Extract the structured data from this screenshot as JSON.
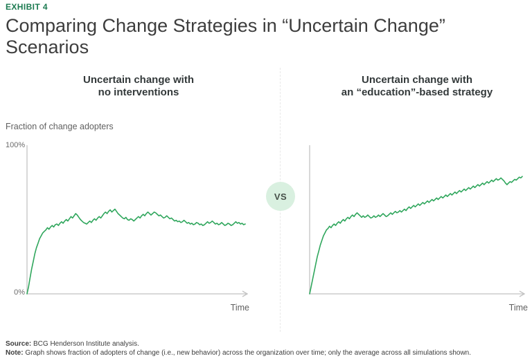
{
  "exhibit_label": "EXHIBIT 4",
  "title_lines": [
    "Comparing Change Strategies in “Uncertain Change”",
    "Scenarios"
  ],
  "vs_badge": {
    "label": "VS"
  },
  "axes": {
    "y_title": "Fraction of change adopters",
    "y_tick_top": "100%",
    "y_tick_bottom": "0%",
    "x_title_left": "Time",
    "x_title_right": "Time"
  },
  "footer": {
    "source_label": "Source:",
    "source_text": " BCG Henderson Institute analysis.",
    "note_label": "Note:",
    "note_text": " Graph shows fraction of adopters of change (i.e., new behavior) across the organization over time; only the average across all simulations shown."
  },
  "colors": {
    "line": "#2fa65c",
    "exhibit_green": "#1b7a50",
    "vs_background": "#d9f0e0",
    "axis_gray": "#c2c2c2",
    "divider_gray": "#e8e8e8"
  },
  "chart_data": [
    {
      "type": "line",
      "title": "Uncertain change with no interventions",
      "title_lines": [
        "Uncertain change with",
        "no interventions"
      ],
      "xlabel": "Time",
      "ylabel": "Fraction of change adopters",
      "ylim": [
        0,
        100
      ],
      "y_ticks": [
        "0%",
        "100%"
      ],
      "x_axis": "unlabeled time axis with arrow",
      "grid": false,
      "legend": false,
      "series": [
        {
          "name": "average fraction of change adopters across all simulations",
          "values": [
            0,
            5,
            11,
            17,
            22,
            27,
            31,
            34,
            37,
            39,
            41,
            42,
            43,
            44.5,
            43.5,
            45,
            46,
            45,
            46.5,
            47,
            46,
            47.5,
            48.5,
            47.5,
            49,
            50,
            49,
            50.5,
            52,
            51,
            52.5,
            54,
            53,
            51.5,
            50,
            49,
            48,
            47.5,
            47,
            48,
            49,
            48,
            49.5,
            50.5,
            49.5,
            51,
            52,
            51,
            52.5,
            54,
            55,
            54,
            55.5,
            56.5,
            55,
            56,
            57,
            55.5,
            54,
            53,
            52,
            51,
            50.5,
            51.5,
            50,
            49.5,
            50.5,
            50,
            49,
            50,
            51,
            52,
            51,
            52.5,
            53.5,
            52.5,
            54,
            55,
            54,
            53,
            54,
            55,
            54.5,
            53.5,
            52.5,
            53,
            52,
            51,
            51.5,
            52.5,
            51.5,
            50.5,
            51,
            50,
            49,
            49.5,
            48.5,
            49,
            48,
            48.5,
            49.5,
            48.5,
            47.5,
            48,
            47,
            47.5,
            46.5,
            47,
            48,
            47.5,
            46.5,
            47,
            46,
            46.5,
            47.5,
            48.5,
            47.5,
            48,
            49,
            48,
            47,
            47.5,
            46.5,
            47,
            48,
            47,
            46,
            46.5,
            47.5,
            47,
            46,
            46.5,
            47.5,
            48.5,
            47.5,
            48,
            47,
            47.5,
            46.5,
            47
          ]
        }
      ]
    },
    {
      "type": "line",
      "title": "Uncertain change with an “education”-based strategy",
      "title_lines": [
        "Uncertain change with",
        "an “education”-based strategy"
      ],
      "xlabel": "Time",
      "ylabel": "Fraction of change adopters",
      "ylim": [
        0,
        100
      ],
      "y_ticks": [
        "0%",
        "100%"
      ],
      "x_axis": "unlabeled time axis with arrow",
      "grid": false,
      "legend": false,
      "series": [
        {
          "name": "average fraction of change adopters across all simulations",
          "values": [
            0,
            5,
            10,
            15,
            20,
            25,
            29,
            33,
            36,
            39,
            41,
            43,
            44,
            45.5,
            44.5,
            46,
            47,
            46,
            47.5,
            48.5,
            47.5,
            49,
            50,
            49,
            50.5,
            51.5,
            50.5,
            52,
            53,
            52,
            53.5,
            54.5,
            53.5,
            52.5,
            51.5,
            52.5,
            51.5,
            52,
            53,
            52,
            51,
            51.5,
            52.5,
            51.5,
            52,
            53,
            52,
            53,
            54,
            53,
            52,
            52.5,
            53.5,
            54.5,
            53.5,
            54.5,
            55.5,
            54.5,
            55,
            56,
            55,
            56,
            57,
            56,
            57.5,
            58.5,
            57.5,
            58.5,
            59.5,
            58.5,
            59.5,
            60.5,
            59.5,
            60.5,
            61.5,
            60.5,
            61.5,
            62.5,
            61.5,
            62.5,
            63.5,
            62.5,
            63.5,
            64.5,
            63.5,
            64.5,
            65.5,
            64.5,
            65.5,
            66.5,
            65.5,
            66.5,
            67.5,
            66.5,
            67.5,
            68.5,
            67.5,
            68.5,
            69.5,
            68.5,
            69.5,
            70.5,
            69.5,
            70.5,
            71.5,
            70.5,
            71.5,
            72.5,
            71.5,
            72.5,
            73.5,
            72.5,
            73.5,
            74.5,
            73.5,
            74.5,
            75.5,
            74.5,
            75.5,
            76.5,
            75.5,
            76.5,
            77.5,
            76.5,
            77,
            78,
            77,
            76,
            74.5,
            73.5,
            74.5,
            75.5,
            75,
            76,
            77,
            76.5,
            77.5,
            78.5,
            78,
            79
          ]
        }
      ]
    }
  ]
}
